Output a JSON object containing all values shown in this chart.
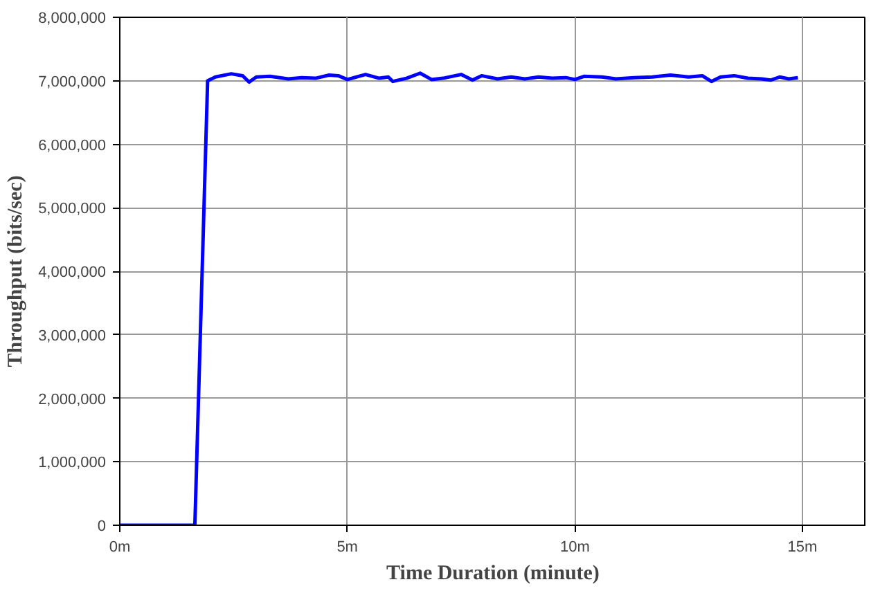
{
  "chart_data": {
    "type": "line",
    "xlabel": "Time Duration (minute)",
    "ylabel": "Throughput (bits/sec)",
    "xlim": [
      0,
      16.4
    ],
    "xticks": [
      {
        "value": 0,
        "label": "0m"
      },
      {
        "value": 5,
        "label": "5m"
      },
      {
        "value": 10,
        "label": "10m"
      },
      {
        "value": 15,
        "label": "15m"
      }
    ],
    "ylim": [
      0,
      8000000
    ],
    "yticks": [
      {
        "value": 0,
        "label": "0"
      },
      {
        "value": 1000000,
        "label": "1,000,000"
      },
      {
        "value": 2000000,
        "label": "2,000,000"
      },
      {
        "value": 3000000,
        "label": "3,000,000"
      },
      {
        "value": 4000000,
        "label": "4,000,000"
      },
      {
        "value": 5000000,
        "label": "5,000,000"
      },
      {
        "value": 6000000,
        "label": "6,000,000"
      },
      {
        "value": 7000000,
        "label": "7,000,000"
      },
      {
        "value": 8000000,
        "label": "8,000,000"
      }
    ],
    "grid": true,
    "marker": "none",
    "line_style": "solid",
    "series": [
      {
        "color": "#0000ff",
        "x": [
          0,
          1.65,
          1.93,
          2.1,
          2.45,
          2.7,
          2.84,
          3.0,
          3.3,
          3.7,
          4.0,
          4.3,
          4.6,
          4.8,
          5.0,
          5.4,
          5.7,
          5.9,
          6.0,
          6.3,
          6.6,
          6.85,
          7.1,
          7.5,
          7.75,
          7.95,
          8.3,
          8.6,
          8.9,
          9.2,
          9.5,
          9.8,
          10.0,
          10.2,
          10.6,
          10.9,
          11.3,
          11.7,
          12.1,
          12.5,
          12.8,
          13.0,
          13.2,
          13.5,
          13.8,
          14.1,
          14.3,
          14.5,
          14.7,
          14.9
        ],
        "values": [
          0,
          0,
          7000000,
          7060000,
          7110000,
          7080000,
          6980000,
          7060000,
          7070000,
          7030000,
          7050000,
          7040000,
          7090000,
          7080000,
          7020000,
          7100000,
          7040000,
          7060000,
          6990000,
          7040000,
          7120000,
          7020000,
          7040000,
          7100000,
          7010000,
          7080000,
          7030000,
          7060000,
          7030000,
          7060000,
          7040000,
          7050000,
          7020000,
          7070000,
          7060000,
          7030000,
          7050000,
          7060000,
          7090000,
          7060000,
          7080000,
          6990000,
          7060000,
          7080000,
          7040000,
          7030000,
          7010000,
          7060000,
          7030000,
          7050000
        ]
      }
    ]
  }
}
